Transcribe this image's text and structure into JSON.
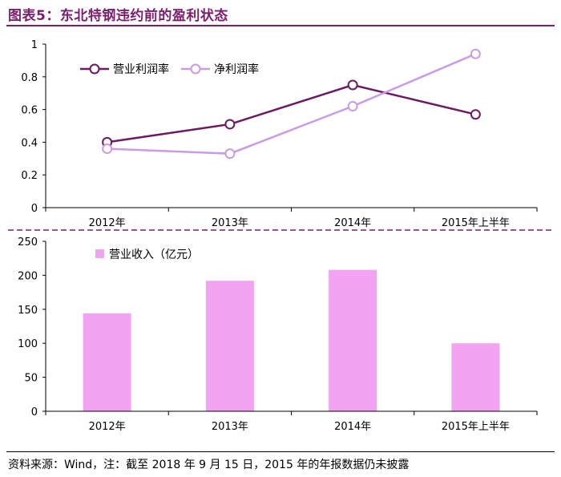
{
  "title": "图表5：东北特钢违约前的盈利状态",
  "source": "资料来源：Wind，注：截至 2018 年 9 月 15 日，2015 年的年报数据仍未披露",
  "chart_data": [
    {
      "type": "line",
      "categories": [
        "2012年",
        "2013年",
        "2014年",
        "2015年上半年"
      ],
      "series": [
        {
          "name": "营业利润率",
          "values": [
            0.4,
            0.51,
            0.75,
            0.57
          ],
          "color": "#6b1a63"
        },
        {
          "name": "净利润率",
          "values": [
            0.36,
            0.33,
            0.62,
            0.94
          ],
          "color": "#c99be6"
        }
      ],
      "ylim": [
        0,
        1
      ],
      "yticks": [
        "0",
        "0.2",
        "0.4",
        "0.6",
        "0.8",
        "1"
      ],
      "grid": false,
      "legend": "top-left"
    },
    {
      "type": "bar",
      "categories": [
        "2012年",
        "2013年",
        "2014年",
        "2015年上半年"
      ],
      "series": [
        {
          "name": "营业收入（亿元）",
          "values": [
            144,
            192,
            208,
            100
          ],
          "color": "#f2a4f2"
        }
      ],
      "ylim": [
        0,
        250
      ],
      "yticks": [
        "0",
        "50",
        "100",
        "150",
        "200",
        "250"
      ],
      "grid": false,
      "legend": "top-left"
    }
  ]
}
